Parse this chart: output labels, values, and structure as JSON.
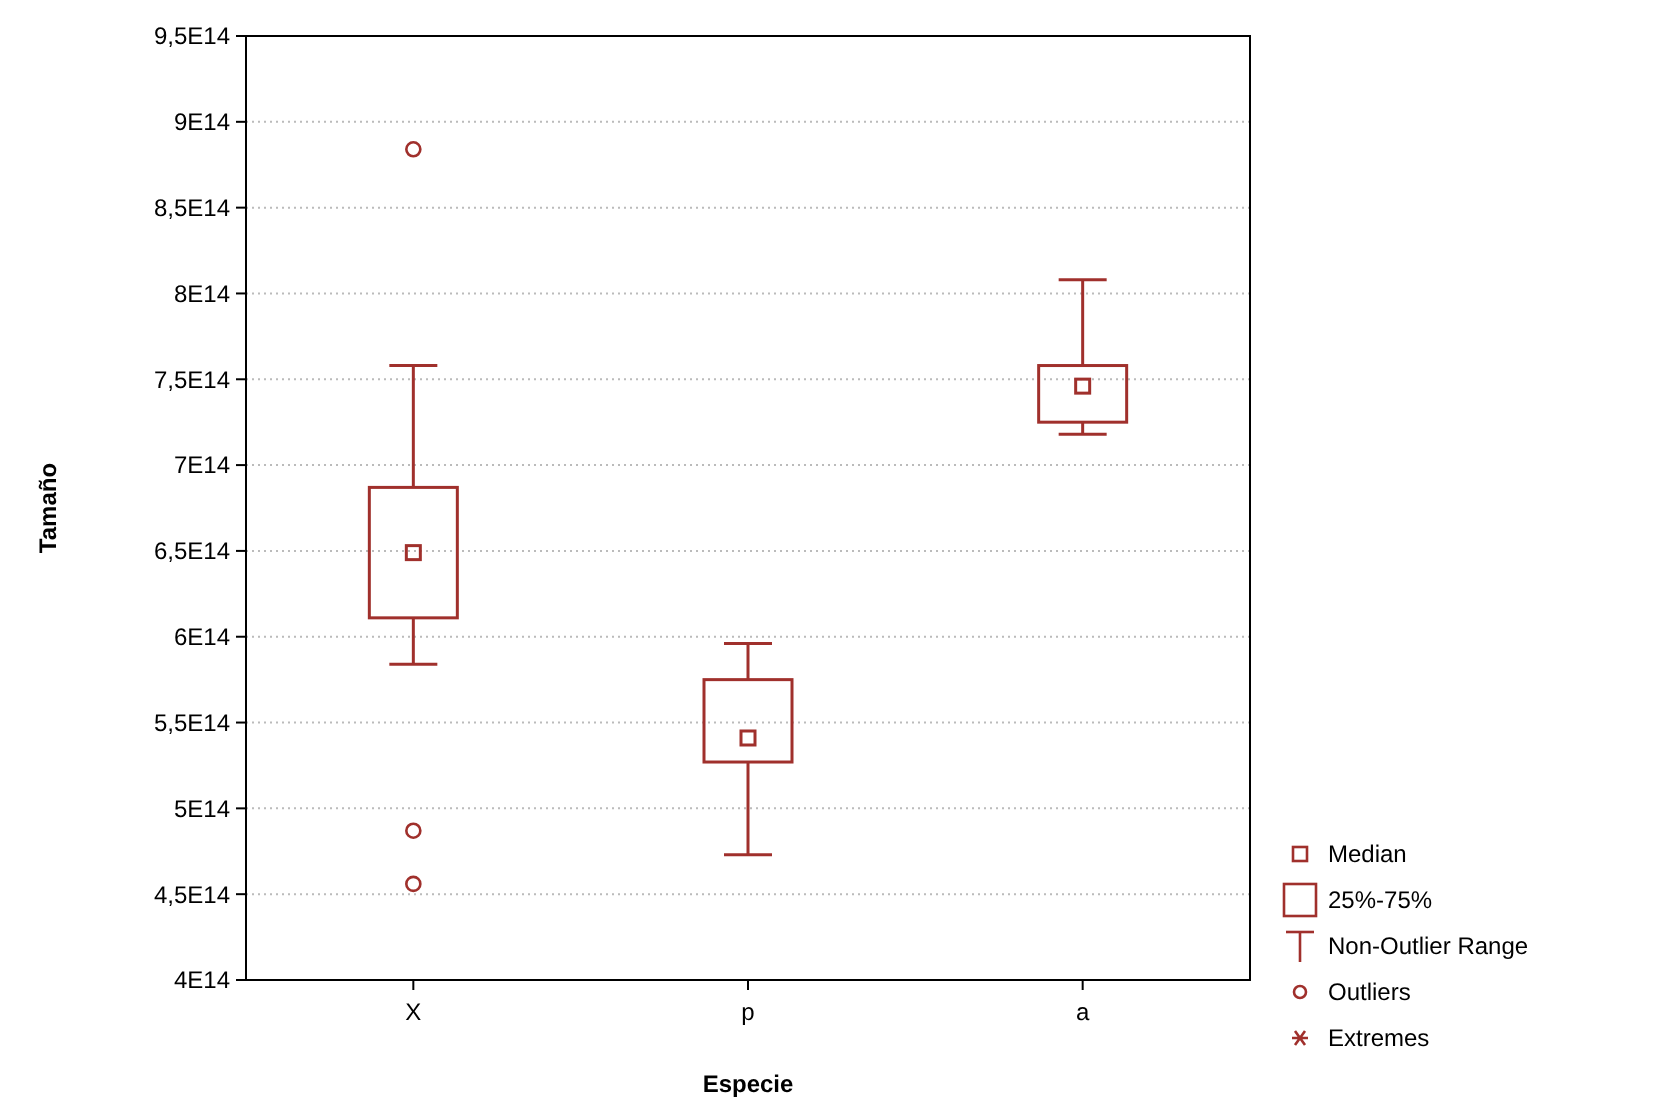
{
  "chart_data": {
    "type": "box",
    "xlabel": "Especie",
    "ylabel": "Tamaño",
    "categories": [
      "X",
      "p",
      "a"
    ],
    "boxes": [
      {
        "low": 584000000000000.0,
        "q1": 611000000000000.0,
        "median": 649000000000000.0,
        "q3": 687000000000000.0,
        "high": 758000000000000.0,
        "outliers": [
          884000000000000.0,
          487000000000000.0,
          456000000000000.0
        ]
      },
      {
        "low": 473000000000000.0,
        "q1": 527000000000000.0,
        "median": 541000000000000.0,
        "q3": 575000000000000.0,
        "high": 596000000000000.0
      },
      {
        "low": 718000000000000.0,
        "q1": 725000000000000.0,
        "median": 746000000000000.0,
        "q3": 758000000000000.0,
        "high": 808000000000000.0
      }
    ],
    "color": "#a0302c",
    "ylim": [
      400000000000000.0,
      950000000000000.0
    ],
    "yticks": [
      {
        "value": 400000000000000.0,
        "label": "4E14"
      },
      {
        "value": 450000000000000.0,
        "label": "4,5E14"
      },
      {
        "value": 500000000000000.0,
        "label": "5E14"
      },
      {
        "value": 550000000000000.0,
        "label": "5,5E14"
      },
      {
        "value": 600000000000000.0,
        "label": "6E14"
      },
      {
        "value": 650000000000000.0,
        "label": "6,5E14"
      },
      {
        "value": 700000000000000.0,
        "label": "7E14"
      },
      {
        "value": 750000000000000.0,
        "label": "7,5E14"
      },
      {
        "value": 800000000000000.0,
        "label": "8E14"
      },
      {
        "value": 850000000000000.0,
        "label": "8,5E14"
      },
      {
        "value": 900000000000000.0,
        "label": "9E14"
      },
      {
        "value": 950000000000000.0,
        "label": "9,5E14"
      }
    ],
    "grid": "y",
    "annotations": [
      "Median",
      "25%-75%",
      "Non-Outlier Range",
      "Outliers",
      "Extremes"
    ]
  }
}
